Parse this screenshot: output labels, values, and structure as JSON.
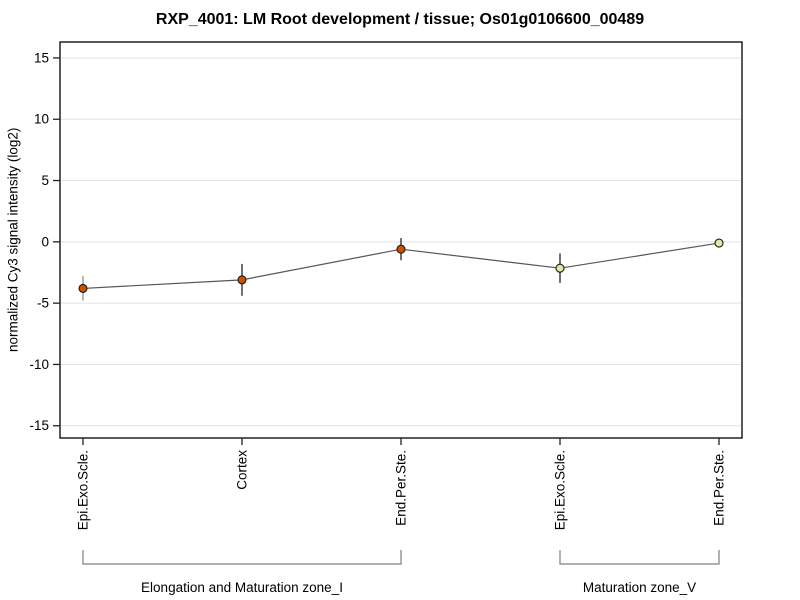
{
  "chart_data": {
    "type": "line",
    "title": "RXP_4001: LM Root development / tissue; Os01g0106600_00489",
    "ylabel": "normalized Cy3 signal intensity (log2)",
    "xlabel": "",
    "ylim": [
      -16.0,
      16.3
    ],
    "yticks": [
      15,
      10,
      5,
      0,
      -5,
      -10,
      -15
    ],
    "grid": true,
    "legend": "none",
    "categories": [
      "Epi.Exo.Scle.",
      "Cortex",
      "End.Per.Ste.",
      "Epi.Exo.Scle.",
      "End.Per.Ste."
    ],
    "values": [
      -3.8,
      -3.1,
      -0.6,
      -2.15,
      -0.1
    ],
    "errors": [
      1.0,
      1.3,
      0.9,
      1.2,
      0.08
    ],
    "point_colors": [
      "#cc5200",
      "#cc5200",
      "#cc5200",
      "#e6e6a0",
      "#e6e6a0"
    ],
    "point_border_color": "#1a1a1a",
    "errorbar_colors": [
      "#999999",
      "#333333",
      "#333333",
      "#333333",
      "#333333"
    ],
    "line_color": "#555555",
    "grid_color": "#e2e2e2",
    "axis_color": "#222222",
    "bracket_color": "#808080",
    "groups": [
      {
        "label": "Elongation and Maturation zone_I",
        "from": 0,
        "to": 2
      },
      {
        "label": "Maturation zone_V",
        "from": 3,
        "to": 4
      }
    ]
  }
}
